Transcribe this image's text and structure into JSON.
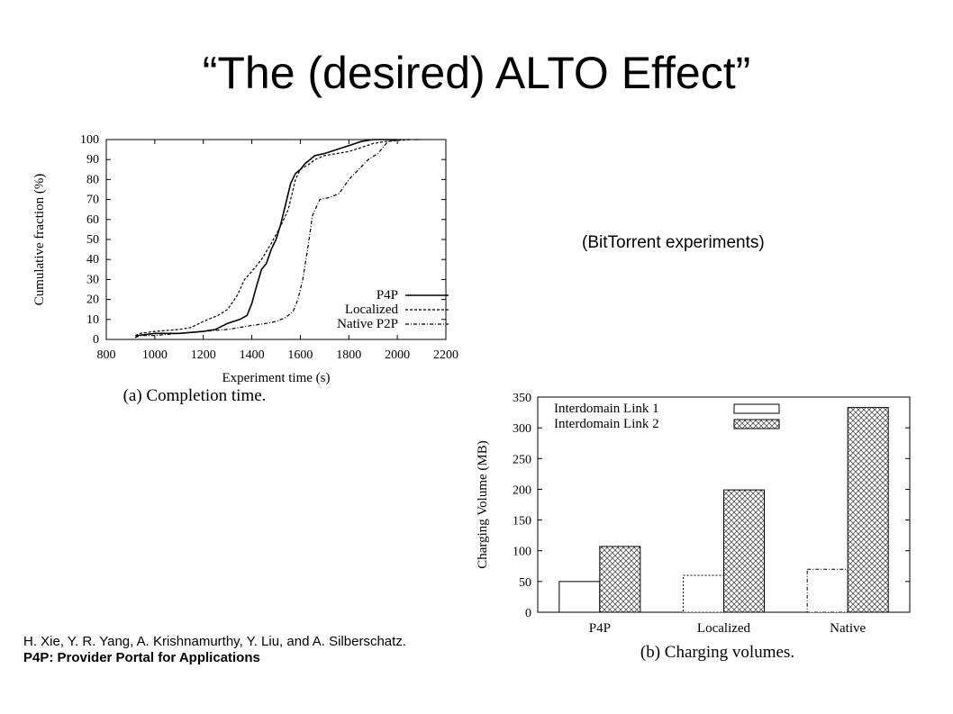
{
  "slide": {
    "title": "“The (desired) ALTO Effect”",
    "note": "(BitTorrent experiments)",
    "citation_line1": "H. Xie, Y. R. Yang, A. Krishnamurthy, Y. Liu, and A. Silberschatz.",
    "citation_line2": "P4P: Provider Portal for Applications"
  },
  "chart_data": [
    {
      "type": "line",
      "caption": "(a) Completion time.",
      "xlabel": "Experiment time (s)",
      "ylabel": "Cumulative fraction (%)",
      "xlim": [
        800,
        2200
      ],
      "ylim": [
        0,
        100
      ],
      "xticks": [
        800,
        1000,
        1200,
        1400,
        1600,
        1800,
        2000,
        2200
      ],
      "yticks": [
        0,
        10,
        20,
        30,
        40,
        50,
        60,
        70,
        80,
        90,
        100
      ],
      "legend_position": "bottom-right",
      "series": [
        {
          "name": "P4P",
          "dash": "solid",
          "points": [
            [
              920,
              1
            ],
            [
              930,
              2
            ],
            [
              1000,
              3
            ],
            [
              1100,
              3
            ],
            [
              1200,
              4
            ],
            [
              1250,
              5
            ],
            [
              1300,
              8
            ],
            [
              1350,
              10
            ],
            [
              1380,
              12
            ],
            [
              1400,
              18
            ],
            [
              1420,
              27
            ],
            [
              1440,
              35
            ],
            [
              1460,
              38
            ],
            [
              1480,
              45
            ],
            [
              1500,
              50
            ],
            [
              1520,
              58
            ],
            [
              1540,
              68
            ],
            [
              1560,
              78
            ],
            [
              1580,
              83
            ],
            [
              1600,
              85
            ],
            [
              1620,
              88
            ],
            [
              1640,
              90
            ],
            [
              1660,
              92
            ],
            [
              1700,
              93
            ],
            [
              1750,
              95
            ],
            [
              1800,
              97
            ],
            [
              1850,
              99
            ],
            [
              1900,
              100
            ],
            [
              2000,
              100
            ]
          ]
        },
        {
          "name": "Localized",
          "dash": "dashed",
          "points": [
            [
              920,
              2
            ],
            [
              940,
              3
            ],
            [
              1000,
              4
            ],
            [
              1100,
              5
            ],
            [
              1150,
              6
            ],
            [
              1200,
              9
            ],
            [
              1260,
              12
            ],
            [
              1300,
              15
            ],
            [
              1340,
              22
            ],
            [
              1370,
              30
            ],
            [
              1400,
              34
            ],
            [
              1440,
              40
            ],
            [
              1480,
              48
            ],
            [
              1520,
              57
            ],
            [
              1550,
              65
            ],
            [
              1580,
              80
            ],
            [
              1600,
              85
            ],
            [
              1640,
              88
            ],
            [
              1660,
              90
            ],
            [
              1700,
              92
            ],
            [
              1750,
              93
            ],
            [
              1800,
              94
            ],
            [
              1850,
              96
            ],
            [
              1900,
              98
            ],
            [
              1950,
              99
            ],
            [
              2050,
              100
            ]
          ]
        },
        {
          "name": "Native P2P",
          "dash": "dashdot",
          "points": [
            [
              920,
              1
            ],
            [
              940,
              2
            ],
            [
              1000,
              2
            ],
            [
              1100,
              3
            ],
            [
              1200,
              4
            ],
            [
              1300,
              5
            ],
            [
              1400,
              7
            ],
            [
              1460,
              8
            ],
            [
              1500,
              9
            ],
            [
              1540,
              11
            ],
            [
              1570,
              14
            ],
            [
              1590,
              20
            ],
            [
              1610,
              30
            ],
            [
              1630,
              45
            ],
            [
              1650,
              62
            ],
            [
              1680,
              70
            ],
            [
              1720,
              71
            ],
            [
              1760,
              73
            ],
            [
              1800,
              80
            ],
            [
              1840,
              85
            ],
            [
              1880,
              90
            ],
            [
              1920,
              93
            ],
            [
              1960,
              99
            ],
            [
              2000,
              100
            ],
            [
              2100,
              100
            ]
          ]
        }
      ]
    },
    {
      "type": "bar",
      "caption": "(b) Charging volumes.",
      "ylabel": "Charging Volume (MB)",
      "ylim": [
        0,
        350
      ],
      "yticks": [
        0,
        50,
        100,
        150,
        200,
        250,
        300,
        350
      ],
      "categories": [
        "P4P",
        "Localized",
        "Native"
      ],
      "legend_position": "top",
      "series": [
        {
          "name": "Interdomain Link 1",
          "fill": "white",
          "values": [
            50,
            60,
            70
          ]
        },
        {
          "name": "Interdomain Link 2",
          "fill": "crosshatch",
          "values": [
            107,
            199,
            333
          ]
        }
      ]
    }
  ]
}
